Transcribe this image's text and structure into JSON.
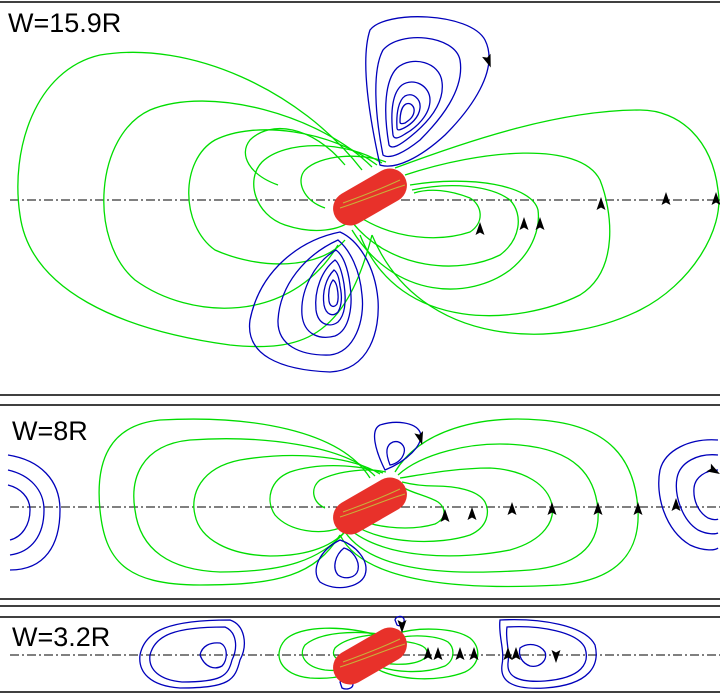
{
  "panels": [
    {
      "label": "W=15.9R"
    },
    {
      "label": "W=8R"
    },
    {
      "label": "W=3.2R"
    }
  ],
  "colors": {
    "outer_streamlines": "#00dd00",
    "recirculating_streamlines": "#0000bb",
    "particle": "#e8312a",
    "walls_and_axis": "#000000"
  }
}
